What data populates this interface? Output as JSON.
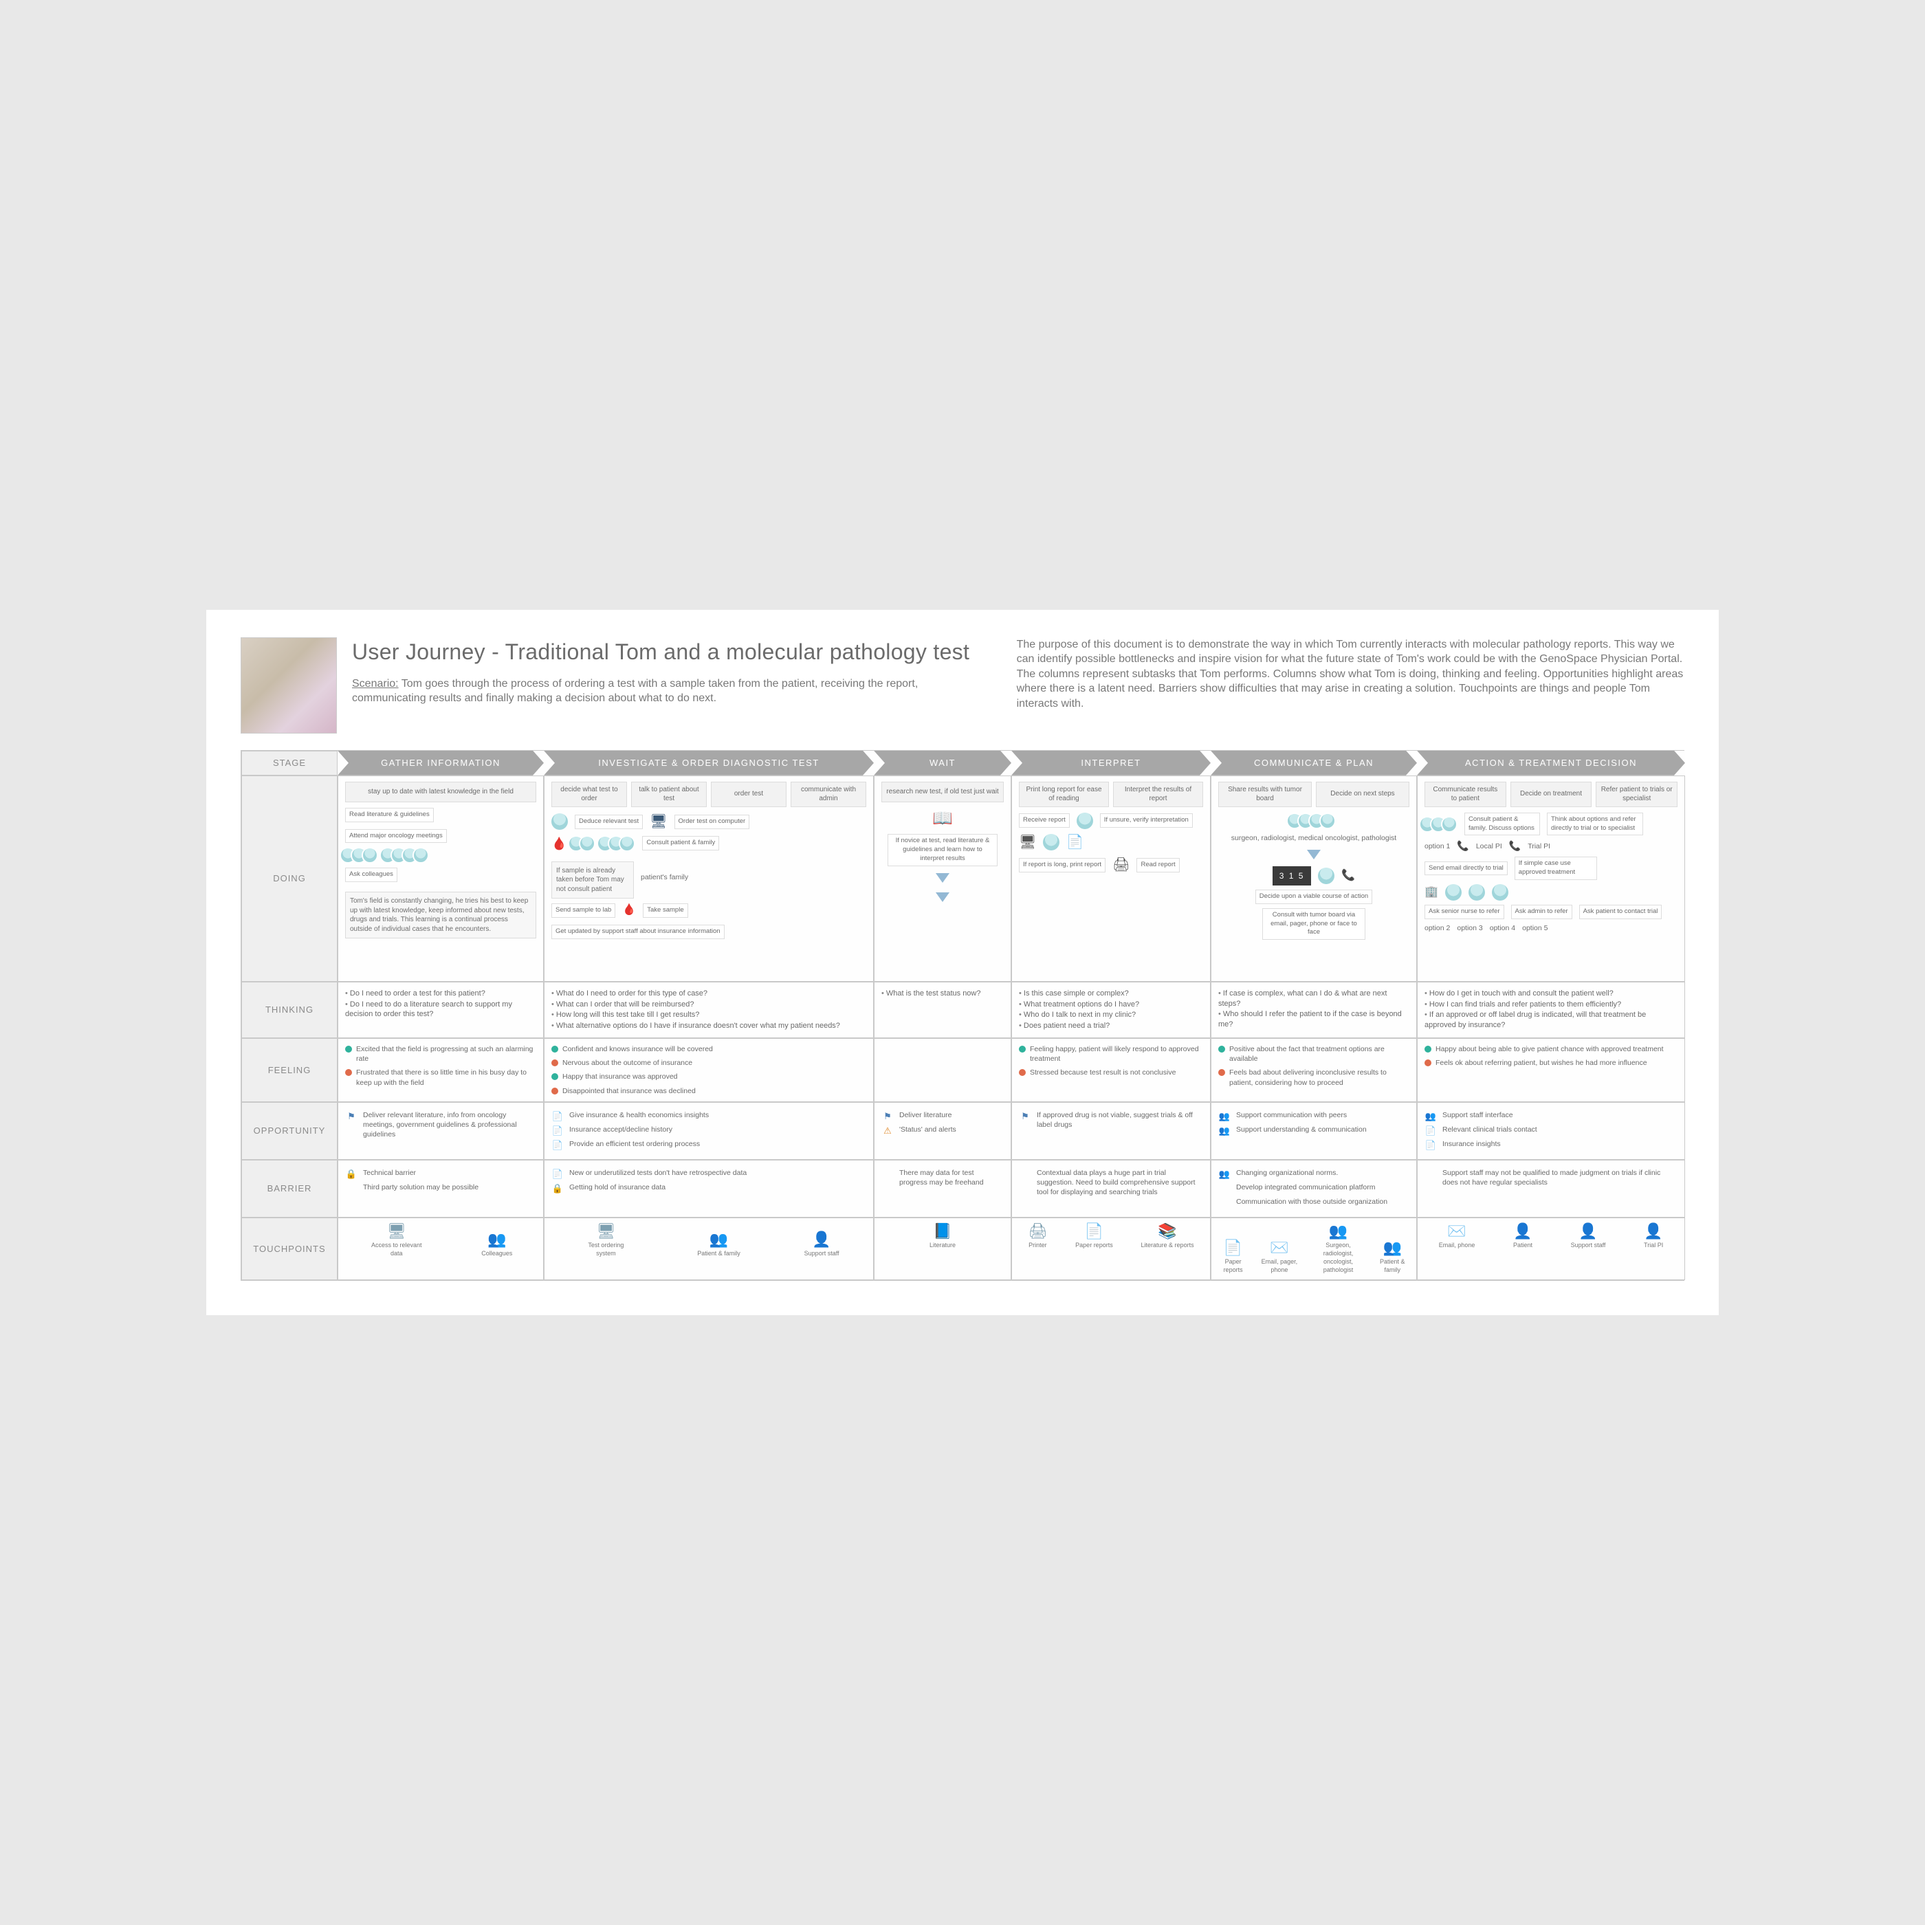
{
  "title": "User Journey - Traditional Tom and a molecular pathology test",
  "scenario_label": "Scenario:",
  "scenario": "Tom goes through the process of ordering a test with a sample taken from the patient, receiving the report, communicating results and finally making a decision about what to do next.",
  "purpose": "The purpose of this document is to demonstrate the way in which Tom currently interacts with molecular pathology reports. This way we can identify possible bottlenecks and inspire vision for what the future state of Tom's work could be with the GenoSpace Physician Portal. The columns represent subtasks that Tom performs. Columns show what Tom is doing, thinking and feeling. Opportunities highlight areas where there is a latent need. Barriers show difficulties that may arise in creating a solution. Touchpoints are things and people Tom interacts with.",
  "row_labels": {
    "stage": "STAGE",
    "doing": "DOING",
    "thinking": "THINKING",
    "feeling": "FEELING",
    "opportunity": "OPPORTUNITY",
    "barrier": "BARRIER",
    "touchpoints": "TOUCHPOINTS"
  },
  "colors": {
    "positive": "#2fb29c",
    "negative": "#e06a4a",
    "arrow": "#a7a7a7",
    "flag": "#4c7fb5",
    "warn": "#e08b2e"
  },
  "stages": [
    {
      "name": "GATHER INFORMATION",
      "chips": [
        "stay up to date with latest knowledge in the field"
      ],
      "doing_items": [
        "Read literature & guidelines",
        "Attend major oncology meetings",
        "Ask colleagues"
      ],
      "doing_note": "Tom's field is constantly changing, he tries his best to keep up with latest knowledge, keep informed about new tests, drugs and trials. This learning is a continual process outside of individual cases that he encounters.",
      "thinking": [
        "Do I need to order a test for this patient?",
        "Do I need to do a literature search to support my decision to order this test?"
      ],
      "feeling": [
        {
          "tone": "pos",
          "text": "Excited that the field is progressing at such an alarming rate"
        },
        {
          "tone": "neg",
          "text": "Frustrated that there is so little time in his busy day to keep up with the field"
        }
      ],
      "opportunity": [
        {
          "icon": "flag",
          "text": "Deliver relevant literature, info from oncology meetings, government guidelines & professional guidelines"
        }
      ],
      "barrier": [
        {
          "icon": "lock",
          "text": "Technical barrier"
        },
        {
          "icon": "",
          "text": "Third party solution may be possible"
        }
      ],
      "touchpoints": [
        {
          "glyph": "🖥",
          "label": "Access to relevant data"
        },
        {
          "glyph": "👥",
          "label": "Colleagues"
        }
      ]
    },
    {
      "name": "INVESTIGATE & ORDER DIAGNOSTIC TEST",
      "chips": [
        "decide what test to order",
        "talk to patient about test",
        "order test",
        "communicate with admin"
      ],
      "doing_items": [
        "Deduce relevant test",
        "Order test on computer",
        "Consult patient & family",
        "Send sample to lab",
        "Take sample",
        "Get updated by support staff about insurance information"
      ],
      "doing_note": "If sample is already taken before Tom may not consult patient",
      "doing_small": "patient's family",
      "thinking": [
        "What do I need to order for this type of case?",
        "What can I order that will be reimbursed?",
        "How long will this test take till I get results?",
        "What alternative options do I have if insurance doesn't cover what my patient needs?"
      ],
      "feeling": [
        {
          "tone": "pos",
          "text": "Confident and knows insurance will be covered"
        },
        {
          "tone": "neg",
          "text": "Nervous about the outcome of insurance"
        },
        {
          "tone": "pos",
          "text": "Happy that insurance was approved"
        },
        {
          "tone": "neg",
          "text": "Disappointed that insurance was declined"
        }
      ],
      "opportunity": [
        {
          "icon": "doc",
          "text": "Give insurance & health economics insights"
        },
        {
          "icon": "doc",
          "text": "Insurance accept/decline history"
        },
        {
          "icon": "doc",
          "text": "Provide an efficient test ordering process"
        }
      ],
      "barrier": [
        {
          "icon": "doc",
          "text": "New or underutilized tests don't have retrospective data"
        },
        {
          "icon": "lock",
          "text": "Getting hold of insurance data"
        }
      ],
      "touchpoints": [
        {
          "glyph": "🖥",
          "label": "Test ordering system"
        },
        {
          "glyph": "👥",
          "label": "Patient & family"
        },
        {
          "glyph": "👤",
          "label": "Support staff"
        }
      ]
    },
    {
      "name": "WAIT",
      "chips": [
        "research new test, if old test just wait"
      ],
      "doing_items": [
        "If novice at test, read literature & guidelines and learn how to interpret results"
      ],
      "thinking": [
        "What is the test status now?"
      ],
      "feeling": [],
      "opportunity": [
        {
          "icon": "flag",
          "text": "Deliver literature"
        },
        {
          "icon": "warn",
          "text": "'Status' and alerts"
        }
      ],
      "barrier": [
        {
          "icon": "",
          "text": "There may data for test progress may be freehand"
        }
      ],
      "touchpoints": [
        {
          "glyph": "📘",
          "label": "Literature"
        }
      ]
    },
    {
      "name": "INTERPRET",
      "chips": [
        "Print long report for ease of reading",
        "Interpret the results of report"
      ],
      "doing_items": [
        "Receive report",
        "If unsure, verify interpretation",
        "If report is long, print report",
        "Read report"
      ],
      "thinking": [
        "Is this case simple or complex?",
        "What treatment options do I have?",
        "Who do I talk to next in my clinic?",
        "Does patient need a trial?"
      ],
      "feeling": [
        {
          "tone": "pos",
          "text": "Feeling happy, patient will likely respond to approved treatment"
        },
        {
          "tone": "neg",
          "text": "Stressed because test result is not conclusive"
        }
      ],
      "opportunity": [
        {
          "icon": "flag",
          "text": "If approved drug is not viable, suggest trials & off label drugs"
        }
      ],
      "barrier": [
        {
          "icon": "",
          "text": "Contextual data plays a huge part in trial suggestion. Need to build comprehensive support tool for displaying and searching trials"
        }
      ],
      "touchpoints": [
        {
          "glyph": "🖨",
          "label": "Printer"
        },
        {
          "glyph": "📄",
          "label": "Paper reports"
        },
        {
          "glyph": "📚",
          "label": "Literature & reports"
        }
      ]
    },
    {
      "name": "COMMUNICATE & PLAN",
      "chips": [
        "Share results with tumor board",
        "Decide on next steps"
      ],
      "doing_items": [
        "surgeon, radiologist, medical oncologist, pathologist",
        "Decide upon a viable course of action",
        "Consult with tumor board via email, pager, phone or face to face"
      ],
      "doing_podium": "3 1 5",
      "thinking": [
        "If case is complex, what can I do & what are next steps?",
        "Who should I refer the patient to if the case is beyond me?"
      ],
      "feeling": [
        {
          "tone": "pos",
          "text": "Positive about the fact that treatment options are available"
        },
        {
          "tone": "neg",
          "text": "Feels bad about delivering inconclusive results to patient, considering how to proceed"
        }
      ],
      "opportunity": [
        {
          "icon": "ppl",
          "text": "Support communication with peers"
        },
        {
          "icon": "ppl",
          "text": "Support understanding & communication"
        }
      ],
      "barrier": [
        {
          "icon": "ppl",
          "text": "Changing organizational norms."
        },
        {
          "icon": "",
          "text": "Develop integrated communication platform"
        },
        {
          "icon": "",
          "text": "Communication with those outside organization"
        }
      ],
      "touchpoints": [
        {
          "glyph": "📄",
          "label": "Paper reports"
        },
        {
          "glyph": "✉️",
          "label": "Email, pager, phone"
        },
        {
          "glyph": "👥",
          "label": "Surgeon, radiologist, oncologist, pathologist"
        },
        {
          "glyph": "👥",
          "label": "Patient & family"
        }
      ]
    },
    {
      "name": "ACTION & TREATMENT DECISION",
      "chips": [
        "Communicate results to patient",
        "Decide on treatment",
        "Refer patient to trials or specialist"
      ],
      "doing_items": [
        "Consult patient & family. Discuss options",
        "Send email directly to trial",
        "Think about options and refer directly to trial or to specialist",
        "If simple case use approved treatment",
        "Ask senior nurse to refer",
        "Ask admin to refer",
        "Ask patient to contact trial"
      ],
      "doing_options": [
        "option 1",
        "option 2",
        "option 3",
        "option 4",
        "option 5",
        "Trial PI",
        "Local PI"
      ],
      "thinking": [
        "How do I get in touch with and consult the patient well?",
        "How I can find trials and refer patients to them efficiently?",
        "If an approved or off label drug is indicated, will that treatment be approved by insurance?"
      ],
      "feeling": [
        {
          "tone": "pos",
          "text": "Happy about being able to give patient chance with approved treatment"
        },
        {
          "tone": "neg",
          "text": "Feels ok about referring patient, but wishes he had more influence"
        }
      ],
      "opportunity": [
        {
          "icon": "ppl",
          "text": "Support staff interface"
        },
        {
          "icon": "doc",
          "text": "Relevant clinical trials contact"
        },
        {
          "icon": "doc",
          "text": "Insurance insights"
        }
      ],
      "barrier": [
        {
          "icon": "",
          "text": "Support staff may not be qualified to made judgment on trials if clinic does not have regular specialists"
        }
      ],
      "touchpoints": [
        {
          "glyph": "✉️",
          "label": "Email, phone"
        },
        {
          "glyph": "👤",
          "label": "Patient"
        },
        {
          "glyph": "👤",
          "label": "Support staff"
        },
        {
          "glyph": "👤",
          "label": "Trial PI"
        }
      ]
    }
  ]
}
